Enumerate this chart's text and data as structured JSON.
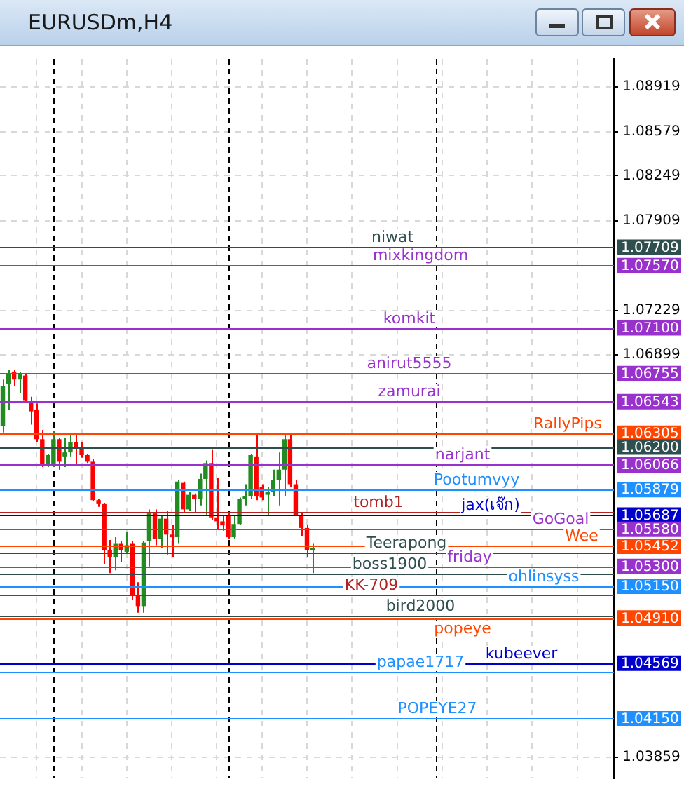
{
  "chart_data": {
    "type": "candlestick",
    "title": "EURUSDm,H4",
    "categories": [
      null,
      null,
      null,
      null,
      null,
      null,
      null,
      null,
      null,
      null,
      null,
      null,
      null,
      null,
      null,
      null,
      null,
      null,
      null,
      null,
      null,
      null,
      null,
      null,
      null,
      null,
      null,
      null,
      null,
      null,
      null,
      null,
      null,
      null,
      null,
      null,
      null,
      null,
      null,
      null,
      null,
      null,
      null,
      null,
      null,
      null,
      null,
      null,
      null,
      null,
      null,
      null,
      null,
      null,
      null,
      null,
      null,
      null,
      null,
      null,
      null,
      null,
      null,
      null,
      null,
      null,
      null,
      null,
      null,
      null,
      null,
      null,
      null,
      null,
      null,
      null,
      null,
      null,
      null,
      null,
      null,
      null,
      null,
      null,
      null,
      null,
      null,
      null,
      null,
      null,
      null,
      null,
      null,
      null,
      null,
      null,
      null,
      null,
      null,
      null,
      null,
      null,
      null,
      null,
      null,
      null,
      null,
      null,
      null
    ],
    "ohlc": [
      [
        1.0636,
        1.0671,
        1.0631,
        1.0666
      ],
      [
        1.0668,
        1.0678,
        1.0648,
        1.0675
      ],
      [
        1.0677,
        1.0678,
        1.0666,
        1.0671
      ],
      [
        1.0671,
        1.0677,
        1.0661,
        1.0675
      ],
      [
        1.0674,
        1.0675,
        1.0654,
        1.0655
      ],
      [
        1.0654,
        1.0658,
        1.0637,
        1.0647
      ],
      [
        1.0648,
        1.0653,
        1.0624,
        1.0626
      ],
      [
        1.0626,
        1.0633,
        1.0605,
        1.0607
      ],
      [
        1.0606,
        1.0615,
        1.0605,
        1.0614
      ],
      [
        1.0606,
        1.0632,
        1.0605,
        1.0626
      ],
      [
        1.0626,
        1.0627,
        1.0603,
        1.0609
      ],
      [
        1.0613,
        1.0627,
        1.0605,
        1.0616
      ],
      [
        1.0616,
        1.063,
        1.0613,
        1.0624
      ],
      [
        1.0624,
        1.0629,
        1.0607,
        1.0619
      ],
      [
        1.062,
        1.0624,
        1.0612,
        1.0614
      ],
      [
        1.0614,
        1.0615,
        1.0608,
        1.0609
      ],
      [
        1.0609,
        1.0611,
        1.0579,
        1.058
      ],
      [
        1.058,
        1.0581,
        1.0575,
        1.0577
      ],
      [
        1.0577,
        1.0578,
        1.0532,
        1.0542
      ],
      [
        1.0542,
        1.055,
        1.0525,
        1.0537
      ],
      [
        1.0537,
        1.0552,
        1.0527,
        1.0547
      ],
      [
        1.0547,
        1.0549,
        1.0533,
        1.0542
      ],
      [
        1.0541,
        1.0556,
        1.054,
        1.0546
      ],
      [
        1.0547,
        1.0549,
        1.0505,
        1.0508
      ],
      [
        1.0508,
        1.0518,
        1.0495,
        1.05
      ],
      [
        1.05,
        1.0549,
        1.0495,
        1.0548
      ],
      [
        1.0549,
        1.0573,
        1.053,
        1.057
      ],
      [
        1.057,
        1.0573,
        1.0546,
        1.0551
      ],
      [
        1.0551,
        1.0568,
        1.0544,
        1.0566
      ],
      [
        1.0566,
        1.0572,
        1.0539,
        1.0554
      ],
      [
        1.0554,
        1.0561,
        1.0537,
        1.0552
      ],
      [
        1.0552,
        1.0595,
        1.0547,
        1.0594
      ],
      [
        1.0593,
        1.0594,
        1.0571,
        1.0573
      ],
      [
        1.0573,
        1.0586,
        1.0572,
        1.0584
      ],
      [
        1.0584,
        1.0585,
        1.0571,
        1.0581
      ],
      [
        1.0581,
        1.06,
        1.0576,
        1.0596
      ],
      [
        1.0596,
        1.061,
        1.0569,
        1.0608
      ],
      [
        1.0608,
        1.0618,
        1.0565,
        1.0567
      ],
      [
        1.0567,
        1.0597,
        1.0558,
        1.0564
      ],
      [
        1.0564,
        1.0569,
        1.0557,
        1.0561
      ],
      [
        1.0568,
        1.0571,
        1.0551,
        1.0552
      ],
      [
        1.0552,
        1.0568,
        1.0551,
        1.0562
      ],
      [
        1.0562,
        1.0582,
        1.0561,
        1.0581
      ],
      [
        1.0581,
        1.0592,
        1.0576,
        1.0583
      ],
      [
        1.0583,
        1.0615,
        1.0581,
        1.0614
      ],
      [
        1.0613,
        1.063,
        1.058,
        1.0583
      ],
      [
        1.059,
        1.0592,
        1.058,
        1.0582
      ],
      [
        1.0584,
        1.059,
        1.0568,
        1.0586
      ],
      [
        1.0586,
        1.0603,
        1.0583,
        1.0595
      ],
      [
        1.0595,
        1.0616,
        1.0576,
        1.0603
      ],
      [
        1.0603,
        1.063,
        1.0583,
        1.0626
      ],
      [
        1.0626,
        1.063,
        1.059,
        1.0592
      ],
      [
        1.0592,
        1.0595,
        1.0568,
        1.0569
      ],
      [
        1.0569,
        1.0571,
        1.0553,
        1.0559
      ],
      [
        1.0559,
        1.0561,
        1.0537,
        1.0542
      ],
      [
        1.0542,
        1.0547,
        1.0525,
        1.0544
      ],
      null,
      null,
      null,
      null,
      null,
      null,
      null,
      null,
      null,
      null,
      null,
      null,
      null,
      null,
      null,
      null,
      null,
      null,
      null,
      null,
      null,
      null,
      null,
      null,
      null,
      null,
      null,
      null,
      null,
      null,
      null,
      null,
      null,
      null,
      null,
      null,
      null,
      null,
      null,
      null,
      null,
      null,
      null,
      null,
      null,
      null,
      null,
      null,
      null,
      null,
      null,
      null,
      null
    ],
    "colors": [
      "#228b22",
      "#228b22",
      "#ff0000",
      "#228b22",
      "#ff0000",
      "#ff0000",
      "#ff0000",
      "#ff0000",
      "#228b22",
      "#228b22",
      "#ff0000",
      "#228b22",
      "#228b22",
      "#ff0000",
      "#ff0000",
      "#ff0000",
      "#ff0000",
      "#ff0000",
      "#ff0000",
      "#ff0000",
      "#228b22",
      "#ff0000",
      "#228b22",
      "#ff0000",
      "#ff0000",
      "#228b22",
      "#228b22",
      "#ff0000",
      "#228b22",
      "#ff0000",
      "#ff0000",
      "#228b22",
      "#ff0000",
      "#228b22",
      "#ff0000",
      "#228b22",
      "#228b22",
      "#ff0000",
      "#ff0000",
      "#ff0000",
      "#ff0000",
      "#228b22",
      "#228b22",
      "#228b22",
      "#228b22",
      "#ff0000",
      "#ff0000",
      "#228b22",
      "#228b22",
      "#228b22",
      "#228b22",
      "#ff0000",
      "#ff0000",
      "#ff0000",
      "#ff0000",
      "#228b22",
      null,
      null,
      null,
      null,
      null,
      null,
      null,
      null,
      null,
      null,
      null,
      null,
      null,
      null,
      null,
      null,
      null,
      null,
      null,
      null,
      null,
      null,
      null,
      null,
      null,
      null,
      null,
      null,
      null,
      null,
      null,
      null,
      null,
      null,
      null,
      null,
      null,
      null,
      null,
      null,
      null,
      null,
      null,
      null,
      null,
      null,
      null,
      null,
      null,
      null,
      null,
      null,
      null
    ],
    "ylim": [
      1.037,
      1.0913
    ],
    "yticks": [
      1.08919,
      1.08579,
      1.08249,
      1.07909,
      1.07229,
      1.06899,
      1.03859
    ],
    "annotations": [
      "1.07709",
      "1.07570",
      "1.07100",
      "1.06755",
      "1.06543",
      "1.06305",
      "1.06200",
      "1.06066",
      "1.05879",
      "1.05687",
      "1.05580",
      "1.05452",
      "1.05300",
      "1.05150",
      "1.04910",
      "1.04569",
      "1.04150"
    ],
    "ref_lines": [
      {
        "axis": "y",
        "value": 1.07709,
        "label": "niwat",
        "color": "#2f4f4f"
      },
      {
        "axis": "y",
        "value": 1.0757,
        "label": "mixkingdom",
        "color": "#9932cc"
      },
      {
        "axis": "y",
        "value": 1.071,
        "label": "komkit",
        "color": "#9932cc"
      },
      {
        "axis": "y",
        "value": 1.06755,
        "label": "anirut5555",
        "color": "#9932cc"
      },
      {
        "axis": "y",
        "value": 1.06543,
        "label": "zamurai",
        "color": "#9932cc"
      },
      {
        "axis": "y",
        "value": 1.06305,
        "label": "RallyPips",
        "color": "#ff4500"
      },
      {
        "axis": "y",
        "value": 1.062,
        "color": "#2f4f4f"
      },
      {
        "axis": "y",
        "value": 1.06066,
        "label": "narjant",
        "color": "#9932cc"
      },
      {
        "axis": "y",
        "value": 1.05879,
        "label": "Pootumvyy",
        "color": "#1e90ff"
      },
      {
        "axis": "y",
        "value": 1.05687,
        "label": "jax(เจ๊ก)",
        "color": "#0000cd"
      },
      {
        "axis": "y",
        "value": 1.0558,
        "label": "GoGoal",
        "color": "#9932cc"
      },
      {
        "axis": "y",
        "value": 1.05452,
        "label": "Wee",
        "color": "#ff4500"
      },
      {
        "axis": "y",
        "value": 1.053,
        "label": "friday",
        "color": "#9932cc"
      },
      {
        "axis": "y",
        "value": 1.0515,
        "label": "ohlinsyss",
        "color": "#1e90ff"
      },
      {
        "axis": "y",
        "value": 1.0491,
        "label": "popeye",
        "color": "#ff4500"
      },
      {
        "axis": "y",
        "value": 1.04569,
        "label": "kubeever",
        "color": "#0000cd"
      },
      {
        "axis": "y",
        "value": 1.0415,
        "label": "POPEYE27",
        "color": "#1e90ff"
      },
      {
        "axis": "y",
        "value": 1.05715,
        "label": "tomb1",
        "color": "#b22222"
      },
      {
        "axis": "y",
        "value": 1.054,
        "label": "Teerapong",
        "color": "#2f4f4f"
      },
      {
        "axis": "y",
        "value": 1.0525,
        "label": "boss1900",
        "color": "#2f4f4f"
      },
      {
        "axis": "y",
        "value": 1.0509,
        "label": "KK-709",
        "color": "#b22222"
      },
      {
        "axis": "y",
        "value": 1.0493,
        "label": "bird2000",
        "color": "#2f4f4f"
      },
      {
        "axis": "y",
        "value": 1.045,
        "label": "papae1717",
        "color": "#1e90ff"
      }
    ],
    "grid": true,
    "legend": false,
    "tick_labels": "y"
  }
}
